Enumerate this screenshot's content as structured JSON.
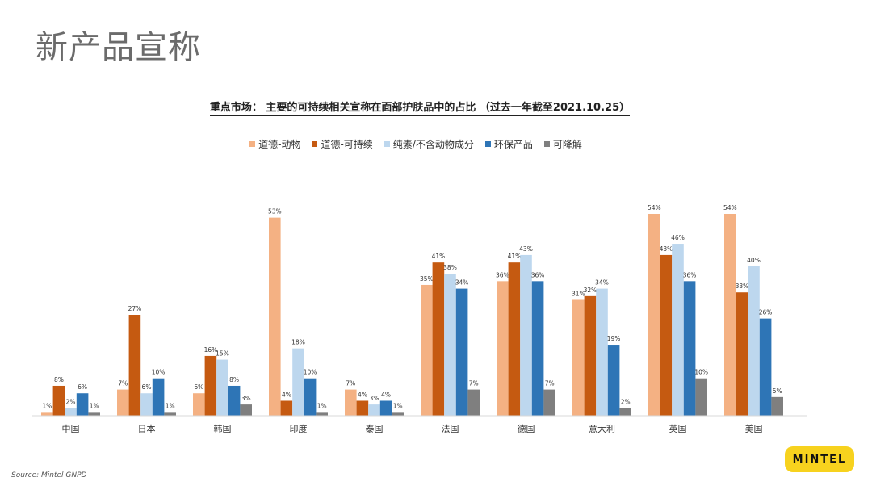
{
  "slide": {
    "title": "新产品宣称",
    "source": "Source: Mintel GNPD",
    "logo_text": "MINTEL"
  },
  "colors": {
    "ethical_animal": "#f4b183",
    "ethical_sustainable": "#c55a11",
    "vegan": "#bdd7ee",
    "eco_product": "#2e75b6",
    "biodegradable": "#7f7f7f",
    "logo_bg": "#f7d21e"
  },
  "chart_data": {
    "type": "bar",
    "title": "重点市场： 主要的可持续相关宣称在面部护肤品中的占比 （过去一年截至2021.10.25）",
    "categories": [
      "中国",
      "日本",
      "韩国",
      "印度",
      "泰国",
      "法国",
      "德国",
      "意大利",
      "英国",
      "美国"
    ],
    "series": [
      {
        "name": "道德-动物",
        "values": [
          1,
          7,
          6,
          53,
          7,
          35,
          36,
          31,
          54,
          54
        ]
      },
      {
        "name": "道德-可持续",
        "values": [
          8,
          27,
          16,
          4,
          4,
          41,
          41,
          32,
          43,
          33
        ]
      },
      {
        "name": "纯素/不含动物成分",
        "values": [
          2,
          6,
          15,
          18,
          3,
          38,
          43,
          34,
          46,
          40
        ]
      },
      {
        "name": "环保产品",
        "values": [
          6,
          10,
          8,
          10,
          4,
          34,
          36,
          19,
          36,
          26
        ]
      },
      {
        "name": "可降解",
        "values": [
          1,
          1,
          3,
          1,
          1,
          7,
          7,
          2,
          10,
          5
        ]
      }
    ],
    "value_suffix": "%",
    "legend_position": "top-center",
    "grid": false,
    "ylim": [
      0,
      54
    ]
  }
}
